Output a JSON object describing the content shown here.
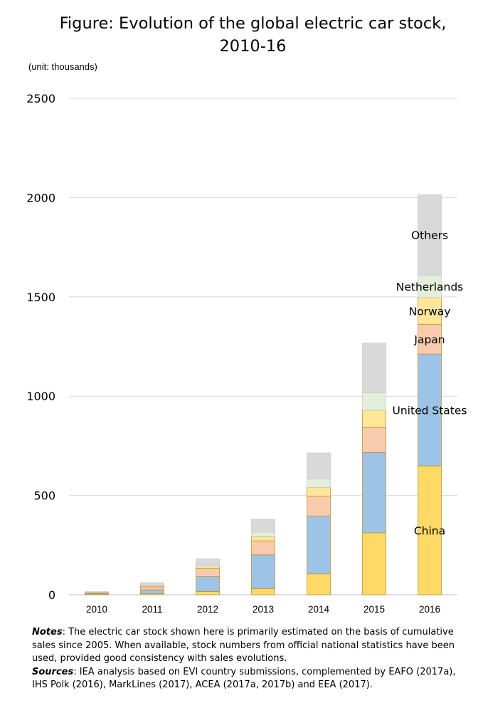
{
  "header": {
    "title_line1": "Figure: Evolution of the global electric car stock,",
    "title_line2": "2010-16",
    "unit_note": "(unit: thousands)"
  },
  "notes": {
    "notes_label": "Notes",
    "notes_text": ": The electric car stock shown here is primarily estimated on the basis of cumulative sales since 2005. When available, stock numbers from official national statistics have been used, provided good consistency with sales evolutions.",
    "sources_label": "Sources",
    "sources_text": ": IEA analysis based on EVI country submissions, complemented by EAFO (2017a), IHS Polk (2016), MarkLines (2017), ACEA (2017a, 2017b) and EEA (2017)."
  },
  "chart_data": {
    "type": "bar",
    "stacked": true,
    "title": "Figure: Evolution of the global electric car stock, 2010-16",
    "ylabel": "(unit: thousands)",
    "ylim": [
      0,
      2500
    ],
    "yticks": [
      0,
      500,
      1000,
      1500,
      2000,
      2500
    ],
    "grid": true,
    "legend": "inline labels on 2016 bar",
    "categories": [
      "2010",
      "2011",
      "2012",
      "2013",
      "2014",
      "2015",
      "2016"
    ],
    "series": [
      {
        "name": "China",
        "color": "#FFD966",
        "values": [
          1,
          5,
          16,
          31,
          105,
          312,
          649
        ]
      },
      {
        "name": "United States",
        "color": "#9DC3E6",
        "values": [
          4,
          20,
          75,
          170,
          291,
          404,
          563
        ]
      },
      {
        "name": "Japan",
        "color": "#F8CBAD",
        "values": [
          4,
          15,
          40,
          70,
          100,
          125,
          150
        ]
      },
      {
        "name": "Norway",
        "color": "#FFE699",
        "values": [
          2,
          6,
          12,
          22,
          44,
          88,
          135
        ]
      },
      {
        "name": "Netherlands",
        "color": "#E2EFDA",
        "values": [
          1,
          2,
          8,
          22,
          44,
          88,
          113
        ]
      },
      {
        "name": "Others",
        "color": "#D9D9D9",
        "values": [
          4,
          13,
          30,
          65,
          130,
          250,
          405
        ]
      }
    ]
  }
}
